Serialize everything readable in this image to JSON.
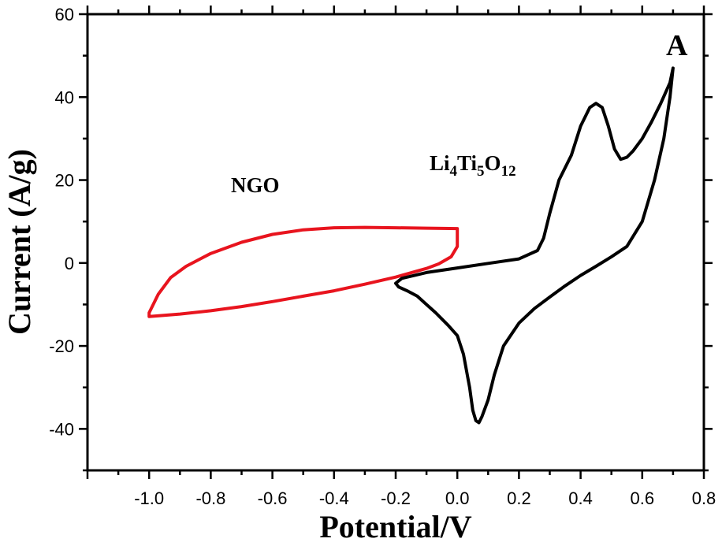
{
  "chart_data": {
    "type": "line",
    "xlabel": "Potential/V",
    "ylabel": "Current (A/g)",
    "xlim": [
      -1.2,
      0.8
    ],
    "ylim": [
      -50,
      60
    ],
    "xticks": [
      "-1.0",
      "-0.8",
      "-0.6",
      "-0.4",
      "-0.2",
      "0.0",
      "0.2",
      "0.4",
      "0.6",
      "0.8"
    ],
    "xtick_values": [
      -1.0,
      -0.8,
      -0.6,
      -0.4,
      -0.2,
      0.0,
      0.2,
      0.4,
      0.6,
      0.8
    ],
    "yticks": [
      "-40",
      "-20",
      "0",
      "20",
      "40",
      "60"
    ],
    "ytick_values": [
      -40,
      -20,
      0,
      20,
      40,
      60
    ],
    "panel_label": "A",
    "annotations": [
      {
        "text": "NGO"
      },
      {
        "text": "Li4Ti5O12",
        "parts": [
          {
            "t": "Li",
            "sub": false
          },
          {
            "t": "4",
            "sub": true
          },
          {
            "t": "Ti",
            "sub": false
          },
          {
            "t": "5",
            "sub": true
          },
          {
            "t": "O",
            "sub": false
          },
          {
            "t": "12",
            "sub": true
          }
        ]
      }
    ],
    "series": [
      {
        "color": "#e8141e",
        "x": [
          0.0,
          0.0,
          -0.02,
          -0.06,
          -0.1,
          -0.2,
          -0.3,
          -0.4,
          -0.5,
          -0.6,
          -0.7,
          -0.8,
          -0.9,
          -1.0,
          -1.0,
          -0.97,
          -0.93,
          -0.88,
          -0.8,
          -0.7,
          -0.6,
          -0.5,
          -0.4,
          -0.3,
          -0.2,
          -0.1,
          0.0
        ],
        "y": [
          8.3,
          4.0,
          1.5,
          -0.2,
          -1.3,
          -3.4,
          -5.1,
          -6.7,
          -8.0,
          -9.3,
          -10.5,
          -11.5,
          -12.3,
          -12.9,
          -12.0,
          -7.5,
          -3.5,
          -0.8,
          2.3,
          5.0,
          6.9,
          8.0,
          8.5,
          8.6,
          8.5,
          8.4,
          8.3
        ]
      },
      {
        "color": "#000000",
        "x": [
          0.7,
          0.69,
          0.67,
          0.64,
          0.6,
          0.55,
          0.5,
          0.45,
          0.4,
          0.35,
          0.3,
          0.25,
          0.2,
          0.15,
          0.12,
          0.1,
          0.08,
          0.07,
          0.06,
          0.05,
          0.04,
          0.02,
          0.0,
          -0.03,
          -0.07,
          -0.1,
          -0.13,
          -0.16,
          -0.19,
          -0.2,
          -0.18,
          -0.1,
          0.0,
          0.1,
          0.2,
          0.26,
          0.28,
          0.3,
          0.33,
          0.37,
          0.4,
          0.43,
          0.45,
          0.47,
          0.49,
          0.51,
          0.53,
          0.55,
          0.57,
          0.6,
          0.63,
          0.66,
          0.69,
          0.7
        ],
        "y": [
          47.0,
          40.0,
          30.0,
          20.0,
          10.0,
          4.0,
          1.5,
          -0.8,
          -3.0,
          -5.5,
          -8.2,
          -11.0,
          -14.5,
          -20.0,
          -27.0,
          -33.0,
          -37.0,
          -38.5,
          -38.0,
          -35.5,
          -30.0,
          -22.0,
          -17.5,
          -15.0,
          -12.0,
          -10.0,
          -8.0,
          -6.8,
          -5.8,
          -4.9,
          -3.7,
          -2.3,
          -1.2,
          -0.1,
          1.0,
          3.0,
          6.0,
          12.0,
          20.0,
          26.0,
          33.0,
          37.5,
          38.5,
          37.5,
          33.0,
          27.5,
          25.0,
          25.5,
          27.0,
          30.0,
          34.0,
          38.5,
          43.5,
          47.0
        ]
      }
    ]
  }
}
